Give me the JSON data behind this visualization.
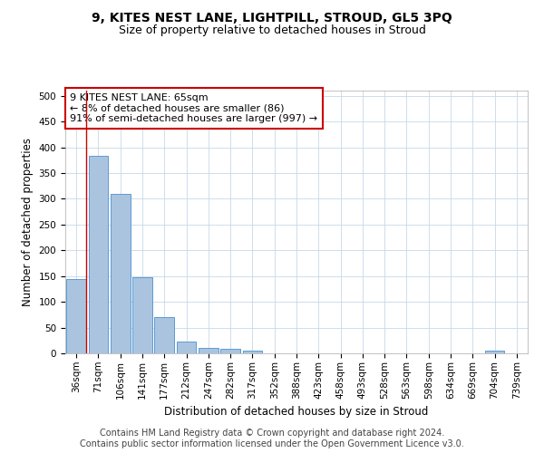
{
  "title": "9, KITES NEST LANE, LIGHTPILL, STROUD, GL5 3PQ",
  "subtitle": "Size of property relative to detached houses in Stroud",
  "xlabel": "Distribution of detached houses by size in Stroud",
  "ylabel": "Number of detached properties",
  "categories": [
    "36sqm",
    "71sqm",
    "106sqm",
    "141sqm",
    "177sqm",
    "212sqm",
    "247sqm",
    "282sqm",
    "317sqm",
    "352sqm",
    "388sqm",
    "423sqm",
    "458sqm",
    "493sqm",
    "528sqm",
    "563sqm",
    "598sqm",
    "634sqm",
    "669sqm",
    "704sqm",
    "739sqm"
  ],
  "values": [
    145,
    383,
    310,
    147,
    70,
    22,
    10,
    8,
    5,
    0,
    0,
    0,
    0,
    0,
    0,
    0,
    0,
    0,
    0,
    5,
    0
  ],
  "bar_color": "#aac4e0",
  "bar_edge_color": "#5b9bd5",
  "ylim": [
    0,
    510
  ],
  "yticks": [
    0,
    50,
    100,
    150,
    200,
    250,
    300,
    350,
    400,
    450,
    500
  ],
  "vline_color": "#cc0000",
  "annotation_text": "9 KITES NEST LANE: 65sqm\n← 8% of detached houses are smaller (86)\n91% of semi-detached houses are larger (997) →",
  "annotation_box_color": "#ffffff",
  "annotation_box_edge": "#cc0000",
  "footer_line1": "Contains HM Land Registry data © Crown copyright and database right 2024.",
  "footer_line2": "Contains public sector information licensed under the Open Government Licence v3.0.",
  "bg_color": "#ffffff",
  "grid_color": "#c8d8e8",
  "title_fontsize": 10,
  "subtitle_fontsize": 9,
  "axis_label_fontsize": 8.5,
  "tick_fontsize": 7.5,
  "annotation_fontsize": 8,
  "footer_fontsize": 7
}
